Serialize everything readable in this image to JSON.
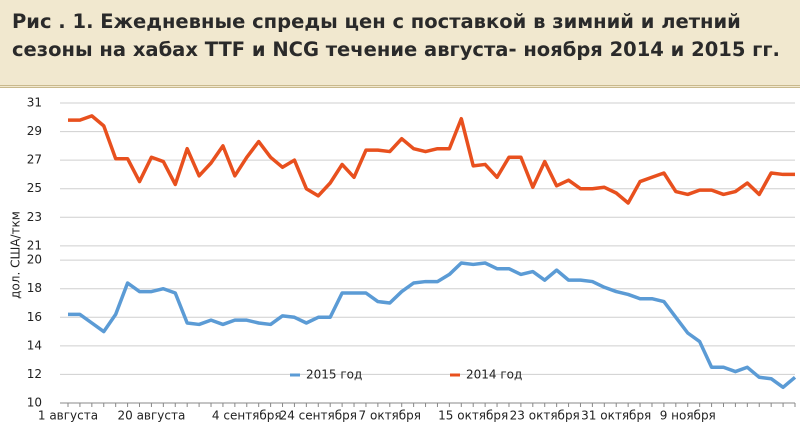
{
  "chart_data": {
    "type": "line",
    "title": [
      "Рис . 1. Ежедневные спреды цен с поставкой в зимний и летний",
      "сезоны на хабах TTF и NCG течение августа- ноября 2014 и 2015 гг."
    ],
    "y_label": "дол. США/ткм",
    "categories": [
      "1 августа",
      null,
      null,
      null,
      null,
      null,
      null,
      "20 августа",
      null,
      null,
      null,
      null,
      null,
      null,
      null,
      "4 сентября",
      null,
      null,
      null,
      null,
      null,
      "24 сентября",
      null,
      null,
      null,
      null,
      null,
      "7 октября",
      null,
      null,
      null,
      null,
      null,
      null,
      "15 октября",
      null,
      null,
      null,
      null,
      null,
      "23 октября",
      null,
      null,
      null,
      null,
      null,
      "31 октября",
      null,
      null,
      null,
      null,
      null,
      "9 ноября",
      null,
      null,
      null,
      null,
      null,
      null,
      null,
      null,
      null
    ],
    "series": [
      {
        "name": "2015 год",
        "color": "#5b9bd5",
        "values": [
          16.2,
          16.2,
          15.6,
          15.0,
          16.2,
          18.4,
          17.8,
          17.8,
          18.0,
          17.7,
          15.6,
          15.5,
          15.8,
          15.5,
          15.8,
          15.8,
          15.6,
          15.5,
          16.1,
          16.0,
          15.6,
          16.0,
          16.0,
          17.7,
          17.7,
          17.7,
          17.1,
          17.0,
          17.8,
          18.4,
          18.5,
          18.5,
          19.0,
          19.8,
          19.7,
          19.8,
          19.4,
          19.4,
          19.0,
          19.2,
          18.6,
          19.3,
          18.6,
          18.6,
          18.5,
          18.1,
          17.8,
          17.6,
          17.3,
          17.3,
          17.1,
          16.0,
          14.9,
          14.3,
          12.5,
          12.5,
          12.2,
          12.5,
          11.8,
          11.7,
          11.1,
          11.8
        ]
      },
      {
        "name": "2014 год",
        "color": "#e8501e",
        "values": [
          29.8,
          29.8,
          30.1,
          29.4,
          27.1,
          27.1,
          25.5,
          27.2,
          26.9,
          25.3,
          27.8,
          25.9,
          26.8,
          28.0,
          25.9,
          27.2,
          28.3,
          27.2,
          26.5,
          27.0,
          25.0,
          24.5,
          25.4,
          26.7,
          25.8,
          27.7,
          27.7,
          27.6,
          28.5,
          27.8,
          27.6,
          27.8,
          27.8,
          29.9,
          26.6,
          26.7,
          25.8,
          27.2,
          27.2,
          25.1,
          26.9,
          25.2,
          25.6,
          25.0,
          25.0,
          25.1,
          24.7,
          24.0,
          25.5,
          25.8,
          26.1,
          24.8,
          24.6,
          24.9,
          24.9,
          24.6,
          24.8,
          25.4,
          24.6,
          26.1,
          26.0,
          26.0
        ]
      }
    ],
    "ylim": [
      10,
      31
    ],
    "yticks": [
      31,
      29,
      27,
      25,
      23,
      21,
      20,
      18,
      16,
      14,
      12,
      10
    ],
    "grid": true,
    "legend": "bottom-center"
  }
}
